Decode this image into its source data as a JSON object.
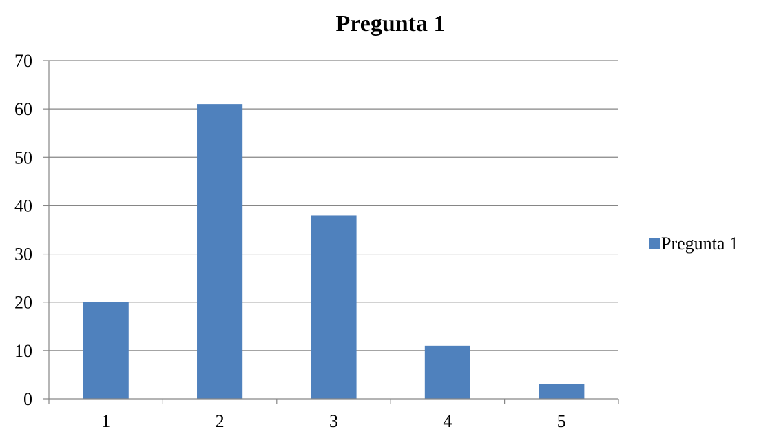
{
  "chart_data": {
    "type": "bar",
    "title": "Pregunta 1",
    "xlabel": "",
    "ylabel": "",
    "categories": [
      "1",
      "2",
      "3",
      "4",
      "5"
    ],
    "series": [
      {
        "name": "Pregunta 1",
        "color": "#4F81BD",
        "values": [
          20,
          61,
          38,
          11,
          3
        ]
      }
    ],
    "ylim": [
      0,
      70
    ],
    "yticks": [
      0,
      10,
      20,
      30,
      40,
      50,
      60,
      70
    ],
    "ytick_labels": [
      "0",
      "10",
      "20",
      "30",
      "40",
      "50",
      "60",
      "70"
    ],
    "grid": true,
    "legend_position": "right"
  }
}
